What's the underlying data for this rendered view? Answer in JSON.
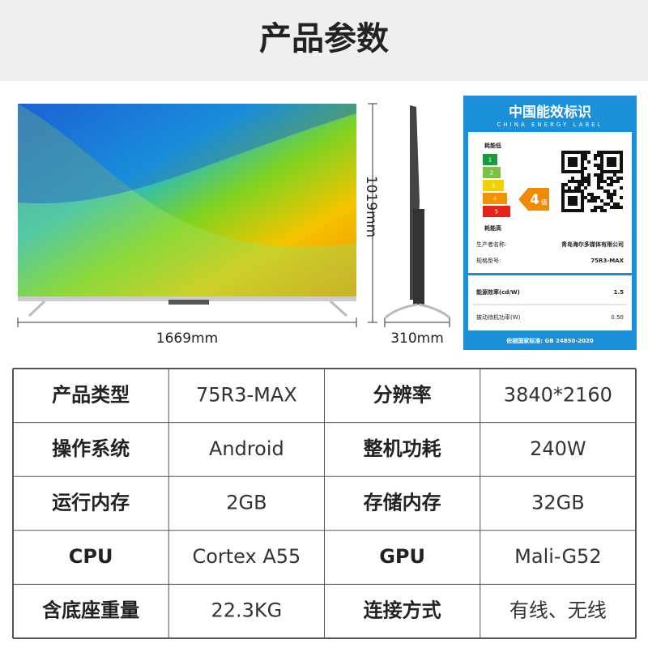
{
  "header": {
    "title": "产品参数"
  },
  "dimensions": {
    "width": "1669mm",
    "height": "1019mm",
    "depth": "310mm"
  },
  "energy_label": {
    "title": "中国能效标识",
    "subtitle": "CHINA ENERGY LABEL",
    "low": "耗能低",
    "levels": [
      "1",
      "2",
      "3",
      "4",
      "5"
    ],
    "high": "耗能高",
    "grade": "4",
    "grade_unit": "级",
    "maker_label": "生产者名称:",
    "maker": "青岛海尔多媒体有限公司",
    "model_label": "规格型号:",
    "model": "75R3-MAX",
    "efficiency_label": "能源效率(cd/W)",
    "efficiency": "1.5",
    "standby_label": "被动待机功率(W)",
    "standby": "0.50",
    "standard": "依据国家标准: GB 24850-2020"
  },
  "table": {
    "rows": [
      [
        "产品类型",
        "75R3-MAX",
        "分辨率",
        "3840*2160"
      ],
      [
        "操作系统",
        "Android",
        "整机功耗",
        "240W"
      ],
      [
        "运行内存",
        "2GB",
        "存储内存",
        "32GB"
      ],
      [
        "CPU",
        "Cortex A55",
        "GPU",
        "Mali-G52"
      ],
      [
        "含底座重量",
        "22.3KG",
        "连接方式",
        "有线、无线"
      ]
    ]
  }
}
